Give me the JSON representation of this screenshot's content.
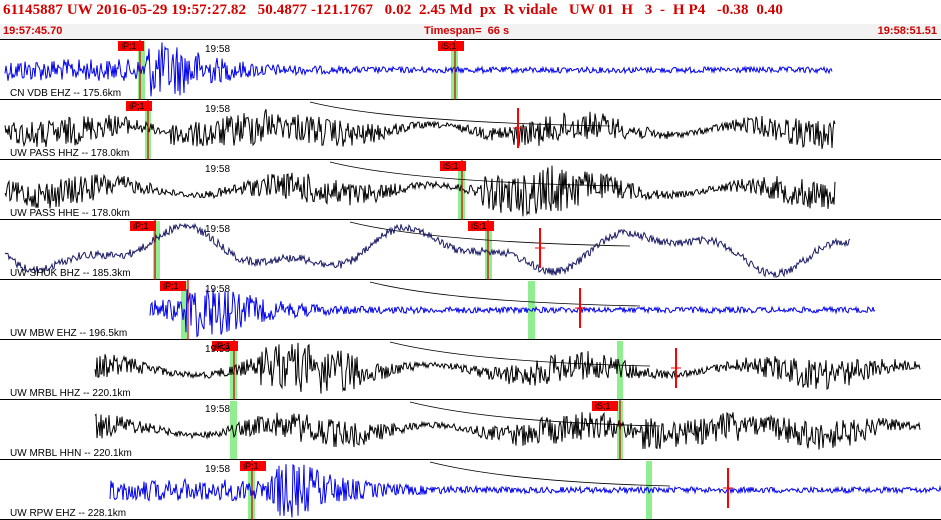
{
  "header": {
    "title": "61145887 UW 2016-05-29 19:57:27.82   50.4877 -121.1767   0.02  2.45 Md  px  R vidale   UW 01  H   3  -  H P4   -0.38  0.40",
    "start_time": "19:57:45.70",
    "timespan_label": "Timespan=  66 s",
    "end_time": "19:58:51.51"
  },
  "colors": {
    "title": "#d40000",
    "blue_trace": "#0000ee",
    "black_trace": "#000000",
    "navy_trace": "#1a1a66",
    "pick_flag": "#ff0000",
    "window_band": "#90ee90"
  },
  "panels": [
    {
      "label": "CN VDB EHZ -- 175.6km",
      "time_label": "19:58",
      "color": "blue",
      "picks": [
        "iP;1",
        "iS;1"
      ],
      "type": "burst"
    },
    {
      "label": "UW PASS HHZ -- 178.0km",
      "time_label": "19:58",
      "color": "black",
      "picks": [
        "iP;1"
      ],
      "type": "noisy"
    },
    {
      "label": "UW PASS HHE -- 178.0km",
      "time_label": "19:58",
      "color": "black",
      "picks": [
        "iS;1"
      ],
      "type": "noisy"
    },
    {
      "label": "UW SHUK BHZ -- 185.3km",
      "time_label": "19:58",
      "color": "navy",
      "picks": [
        "iP;1",
        "iS;1"
      ],
      "type": "wavy"
    },
    {
      "label": "UW MBW EHZ -- 196.5km",
      "time_label": "19:58",
      "color": "blue",
      "picks": [
        "iP;1"
      ],
      "type": "burst"
    },
    {
      "label": "UW MRBL HHZ -- 220.1km",
      "time_label": "19:58",
      "color": "black",
      "picks": [
        "iP;1"
      ],
      "type": "noisy"
    },
    {
      "label": "UW MRBL HHN -- 220.1km",
      "time_label": "19:58",
      "color": "black",
      "picks": [
        "iS;1"
      ],
      "type": "noisy"
    },
    {
      "label": "UW RPW EHZ -- 228.1km",
      "time_label": "19:58",
      "color": "blue",
      "picks": [
        "iP;1"
      ],
      "type": "burst"
    }
  ]
}
